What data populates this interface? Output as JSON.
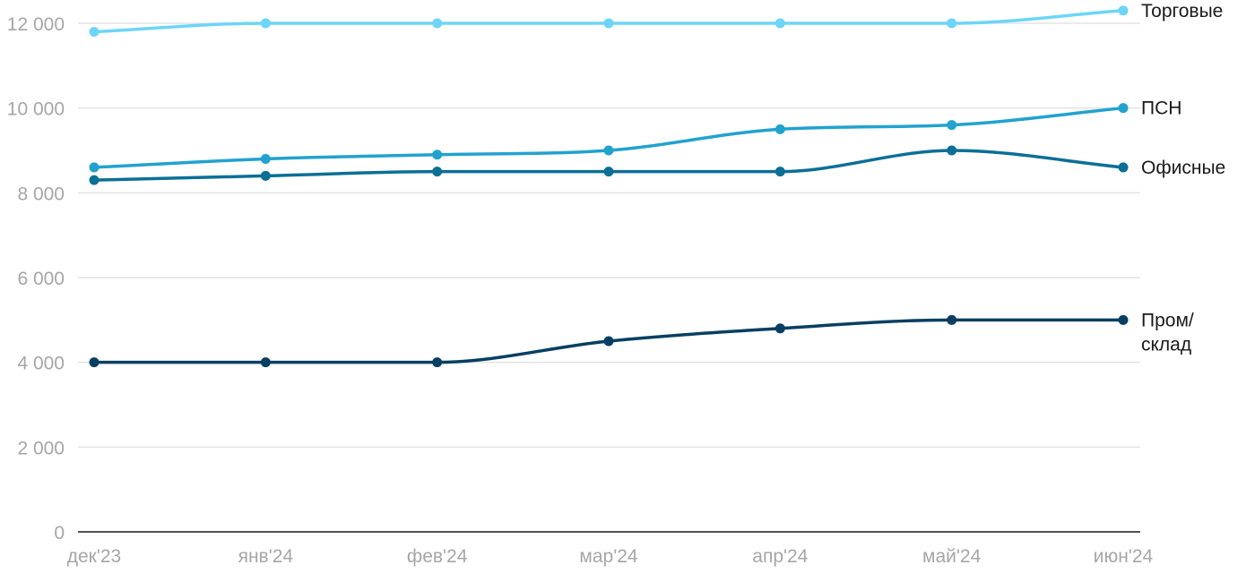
{
  "chart_data": {
    "type": "line",
    "title": "",
    "xlabel": "",
    "ylabel": "",
    "categories": [
      "дек'23",
      "янв'24",
      "фев'24",
      "мар'24",
      "апр'24",
      "май'24",
      "июн'24"
    ],
    "ylim": [
      0,
      12000
    ],
    "yticks": [
      0,
      2000,
      4000,
      6000,
      8000,
      10000,
      12000
    ],
    "ytick_labels": [
      "0",
      "2 000",
      "4 000",
      "6 000",
      "8 000",
      "10 000",
      "12 000"
    ],
    "grid": true,
    "legend": "labels at line ends (right)",
    "series": [
      {
        "name": "Торговые",
        "label_lines": [
          "Торговые"
        ],
        "color": "#6dd5f7",
        "values": [
          11800,
          12000,
          12000,
          12000,
          12000,
          12000,
          12300
        ]
      },
      {
        "name": "ПСН",
        "label_lines": [
          "ПСН"
        ],
        "color": "#22a2cf",
        "values": [
          8600,
          8800,
          8900,
          9000,
          9500,
          9600,
          10000
        ]
      },
      {
        "name": "Офисные",
        "label_lines": [
          "Офисные"
        ],
        "color": "#0b6f96",
        "values": [
          8300,
          8400,
          8500,
          8500,
          8500,
          9000,
          8600
        ]
      },
      {
        "name": "Пром/склад",
        "label_lines": [
          "Пром/",
          "склад"
        ],
        "color": "#073f62",
        "values": [
          4000,
          4000,
          4000,
          4500,
          4800,
          5000,
          5000
        ]
      }
    ]
  }
}
